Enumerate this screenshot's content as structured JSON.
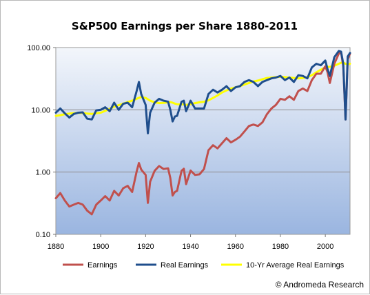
{
  "chart_data": {
    "type": "line",
    "title": "S&P500 Earnings per Share 1880-2011",
    "xlabel": "",
    "ylabel": "",
    "y_scale": "log",
    "xlim": [
      1880,
      2011
    ],
    "ylim": [
      0.1,
      100
    ],
    "x_ticks": [
      1880,
      1900,
      1920,
      1940,
      1960,
      1980,
      2000
    ],
    "x_tick_labels": [
      "1880",
      "1900",
      "1920",
      "1940",
      "1960",
      "1980",
      "2000"
    ],
    "y_ticks": [
      0.1,
      1,
      10,
      100
    ],
    "y_tick_labels": [
      "0.10",
      "1.00",
      "10.00",
      "100.00"
    ],
    "grid": "horizontal",
    "legend_position": "bottom",
    "credit": "© Andromeda Research",
    "x": [
      1880,
      1882,
      1884,
      1886,
      1888,
      1890,
      1892,
      1894,
      1896,
      1898,
      1900,
      1902,
      1904,
      1906,
      1908,
      1910,
      1912,
      1914,
      1916,
      1917,
      1918,
      1920,
      1921,
      1922,
      1924,
      1926,
      1928,
      1930,
      1931,
      1932,
      1933,
      1934,
      1936,
      1937,
      1938,
      1940,
      1942,
      1944,
      1946,
      1948,
      1950,
      1952,
      1954,
      1956,
      1958,
      1960,
      1962,
      1964,
      1966,
      1968,
      1970,
      1972,
      1974,
      1976,
      1978,
      1980,
      1982,
      1984,
      1986,
      1988,
      1990,
      1992,
      1994,
      1996,
      1998,
      2000,
      2001,
      2002,
      2004,
      2006,
      2007,
      2008,
      2009,
      2010,
      2011
    ],
    "series": [
      {
        "name": "Earnings",
        "color": "#c0504d",
        "values": [
          0.38,
          0.46,
          0.35,
          0.28,
          0.3,
          0.32,
          0.3,
          0.24,
          0.21,
          0.3,
          0.35,
          0.41,
          0.35,
          0.5,
          0.42,
          0.55,
          0.6,
          0.48,
          1.02,
          1.4,
          1.1,
          0.9,
          0.32,
          0.7,
          1.05,
          1.25,
          1.12,
          1.15,
          0.8,
          0.42,
          0.48,
          0.5,
          1.05,
          1.13,
          0.64,
          1.06,
          0.9,
          0.92,
          1.12,
          2.25,
          2.7,
          2.4,
          2.9,
          3.5,
          3.0,
          3.3,
          3.7,
          4.5,
          5.5,
          5.8,
          5.5,
          6.3,
          8.5,
          10.5,
          12.0,
          15.0,
          14.5,
          16.5,
          14.5,
          20.0,
          22.0,
          20.0,
          30.0,
          38.0,
          38.0,
          50.0,
          40.0,
          27.0,
          55.0,
          80.0,
          84.0,
          50.0,
          7.0,
          65.0,
          80.0
        ]
      },
      {
        "name": "Real Earnings",
        "color": "#1f4e8c",
        "values": [
          9.0,
          10.5,
          8.8,
          7.5,
          8.6,
          9.0,
          9.1,
          7.2,
          7.0,
          9.8,
          10.0,
          11.0,
          9.5,
          13.0,
          10.0,
          12.5,
          13.0,
          11.0,
          20.0,
          28.0,
          18.0,
          12.0,
          4.2,
          9.0,
          13.0,
          15.0,
          14.0,
          13.5,
          10.0,
          6.5,
          7.8,
          8.0,
          13.5,
          14.0,
          9.5,
          14.0,
          10.5,
          10.5,
          10.5,
          18.0,
          21.0,
          19.0,
          21.0,
          24.0,
          20.0,
          23.0,
          24.0,
          28.0,
          30.0,
          28.0,
          24.0,
          28.0,
          30.0,
          32.0,
          33.0,
          35.0,
          30.0,
          33.0,
          28.0,
          36.0,
          35.0,
          32.0,
          48.0,
          55.0,
          52.0,
          62.0,
          45.0,
          35.0,
          70.0,
          88.0,
          86.0,
          55.0,
          7.0,
          72.0,
          82.0
        ]
      },
      {
        "name": "10-Yr Average Real Earnings",
        "color": "#ffff00",
        "values": [
          8.0,
          8.2,
          8.5,
          8.7,
          8.8,
          8.9,
          8.9,
          8.7,
          8.6,
          8.8,
          9.0,
          9.6,
          10.4,
          11.2,
          11.9,
          12.6,
          13.3,
          14.0,
          15.0,
          15.6,
          16.0,
          15.5,
          14.8,
          14.0,
          13.2,
          12.8,
          12.9,
          13.2,
          13.3,
          13.0,
          12.6,
          12.3,
          12.2,
          12.2,
          12.0,
          12.3,
          12.8,
          13.2,
          13.5,
          14.2,
          15.5,
          17.0,
          19.0,
          20.5,
          22.0,
          23.0,
          24.0,
          25.5,
          27.0,
          28.5,
          29.5,
          31.0,
          32.5,
          33.0,
          33.5,
          34.0,
          33.5,
          33.0,
          32.5,
          32.0,
          32.5,
          33.5,
          36.0,
          40.0,
          44.0,
          48.0,
          49.0,
          49.0,
          51.0,
          55.0,
          57.0,
          57.5,
          55.0,
          54.0,
          55.0
        ]
      }
    ]
  }
}
